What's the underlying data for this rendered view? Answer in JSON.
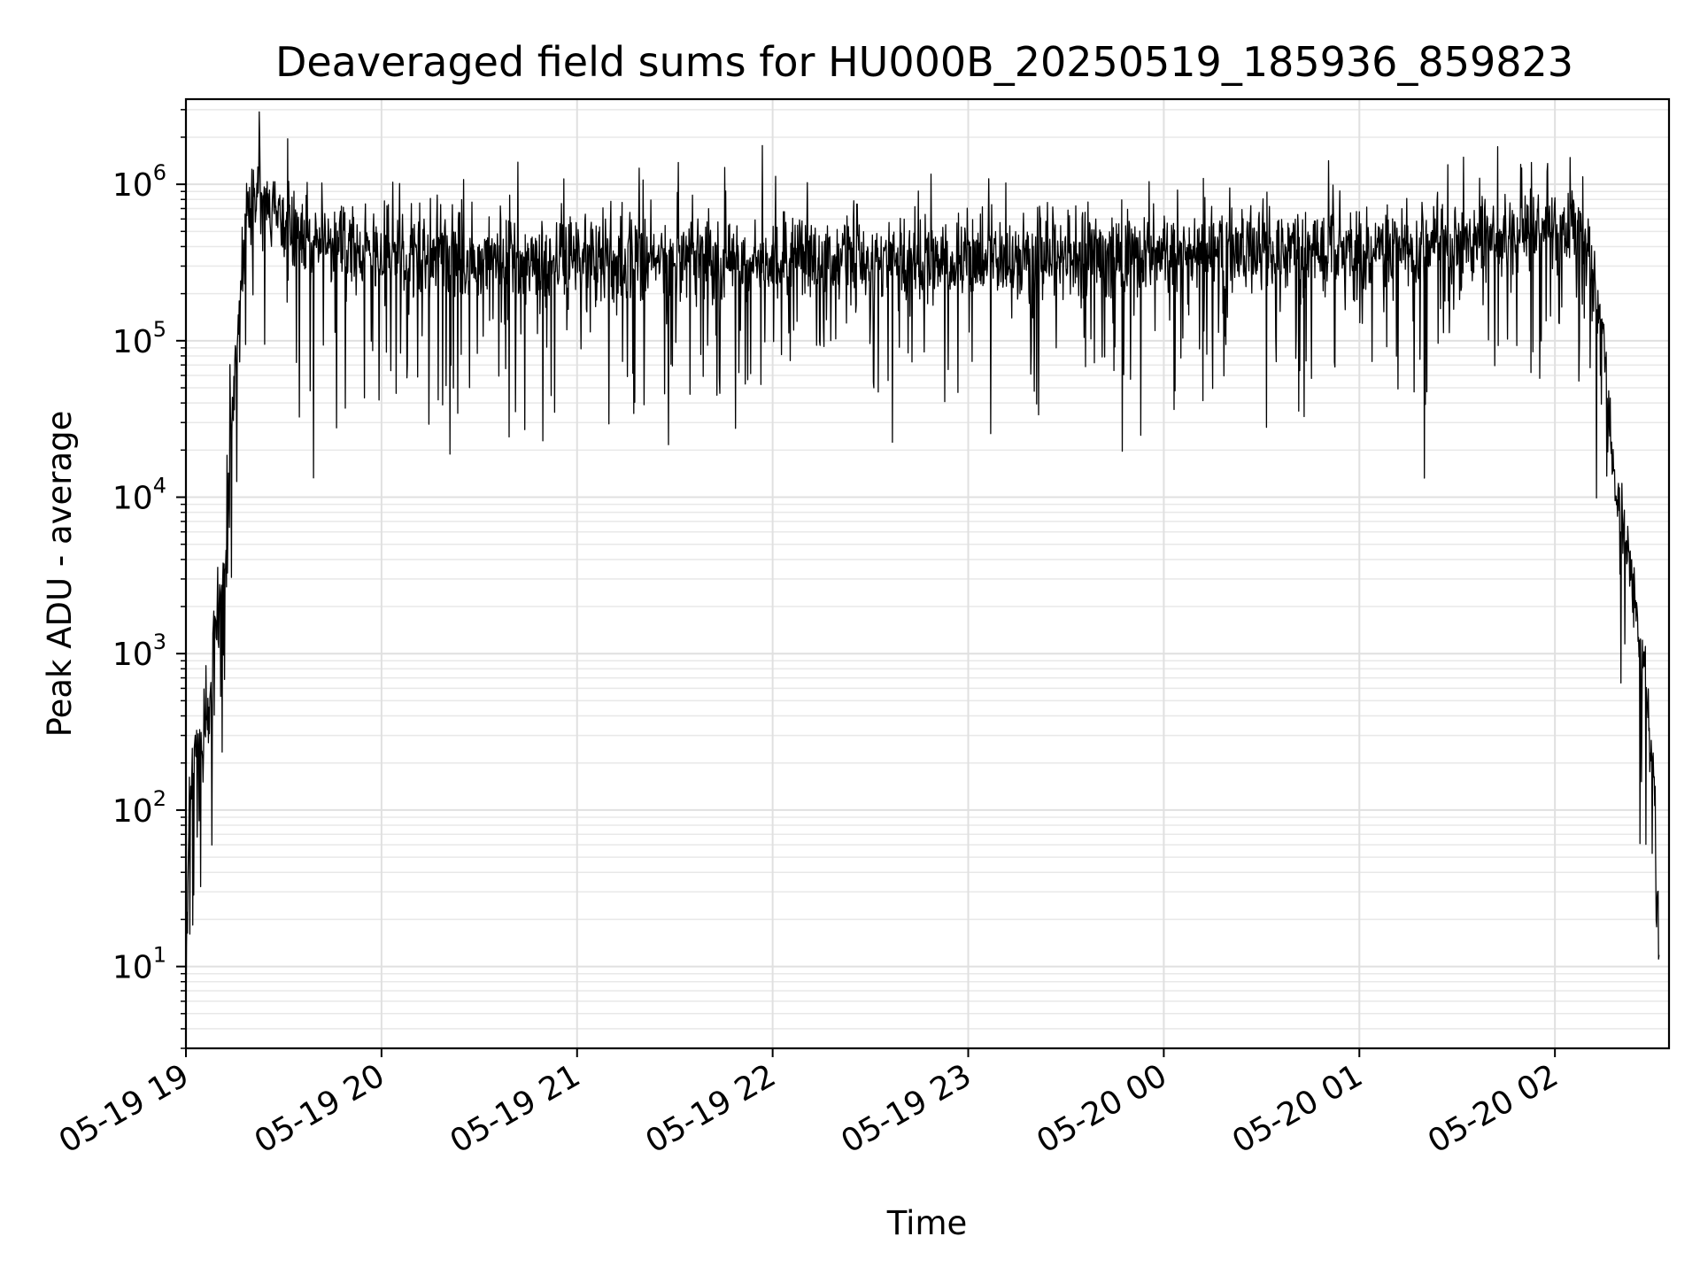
{
  "chart_data": {
    "type": "line",
    "title": "Deaveraged field sums for HU000B_20250519_185936_859823",
    "xlabel": "Time",
    "ylabel": "Peak ADU - average",
    "yscale": "log",
    "grid": true,
    "legend": "none",
    "line_color": "#000000",
    "x_range": [
      "2025-05-19 19:00",
      "2025-05-20 02:35"
    ],
    "y_range": [
      3,
      3500000
    ],
    "x_ticks": [
      {
        "t": "2025-05-19 19:00",
        "label": "05-19 19"
      },
      {
        "t": "2025-05-19 20:00",
        "label": "05-19 20"
      },
      {
        "t": "2025-05-19 21:00",
        "label": "05-19 21"
      },
      {
        "t": "2025-05-19 22:00",
        "label": "05-19 22"
      },
      {
        "t": "2025-05-19 23:00",
        "label": "05-19 23"
      },
      {
        "t": "2025-05-20 00:00",
        "label": "05-20 00"
      },
      {
        "t": "2025-05-20 01:00",
        "label": "05-20 01"
      },
      {
        "t": "2025-05-20 02:00",
        "label": "05-20 02"
      }
    ],
    "y_ticks": [
      {
        "value": 10,
        "base": "10",
        "exp": "1"
      },
      {
        "value": 100,
        "base": "10",
        "exp": "2"
      },
      {
        "value": 1000,
        "base": "10",
        "exp": "3"
      },
      {
        "value": 10000,
        "base": "10",
        "exp": "4"
      },
      {
        "value": 100000,
        "base": "10",
        "exp": "5"
      },
      {
        "value": 1000000,
        "base": "10",
        "exp": "6"
      }
    ],
    "series": [
      {
        "noise_sigma_log10": 0.14,
        "dip_probability": 0.09,
        "spike_probability": 0.035,
        "points": [
          {
            "t": "2025-05-19 19:00",
            "y": 5
          },
          {
            "t": "2025-05-19 19:01",
            "y": 120
          },
          {
            "t": "2025-05-19 19:03",
            "y": 250
          },
          {
            "t": "2025-05-19 19:05",
            "y": 200
          },
          {
            "t": "2025-05-19 19:07",
            "y": 400
          },
          {
            "t": "2025-05-19 19:08",
            "y": 700
          },
          {
            "t": "2025-05-19 19:09",
            "y": 1500
          },
          {
            "t": "2025-05-19 19:10",
            "y": 2000
          },
          {
            "t": "2025-05-19 19:12",
            "y": 4000
          },
          {
            "t": "2025-05-19 19:13",
            "y": 8000
          },
          {
            "t": "2025-05-19 19:14",
            "y": 30000
          },
          {
            "t": "2025-05-19 19:15",
            "y": 60000
          },
          {
            "t": "2025-05-19 19:16",
            "y": 150000
          },
          {
            "t": "2025-05-19 19:18",
            "y": 500000
          },
          {
            "t": "2025-05-19 19:20",
            "y": 750000
          },
          {
            "t": "2025-05-19 19:23",
            "y": 900000
          },
          {
            "t": "2025-05-19 19:26",
            "y": 800000
          },
          {
            "t": "2025-05-19 19:30",
            "y": 500000
          },
          {
            "t": "2025-05-19 19:40",
            "y": 420000
          },
          {
            "t": "2025-05-19 20:00",
            "y": 350000
          },
          {
            "t": "2025-05-19 21:00",
            "y": 330000
          },
          {
            "t": "2025-05-19 22:00",
            "y": 320000
          },
          {
            "t": "2025-05-19 23:00",
            "y": 330000
          },
          {
            "t": "2025-05-20 00:00",
            "y": 350000
          },
          {
            "t": "2025-05-20 01:00",
            "y": 380000
          },
          {
            "t": "2025-05-20 01:45",
            "y": 420000
          },
          {
            "t": "2025-05-20 02:00",
            "y": 550000
          },
          {
            "t": "2025-05-20 02:05",
            "y": 600000
          },
          {
            "t": "2025-05-20 02:10",
            "y": 400000
          },
          {
            "t": "2025-05-20 02:14",
            "y": 150000
          },
          {
            "t": "2025-05-20 02:17",
            "y": 30000
          },
          {
            "t": "2025-05-20 02:18",
            "y": 10000
          },
          {
            "t": "2025-05-20 02:21",
            "y": 7000
          },
          {
            "t": "2025-05-20 02:23",
            "y": 4000
          },
          {
            "t": "2025-05-20 02:25",
            "y": 2000
          },
          {
            "t": "2025-05-20 02:27",
            "y": 1000
          },
          {
            "t": "2025-05-20 02:29",
            "y": 300
          },
          {
            "t": "2025-05-20 02:31",
            "y": 100
          },
          {
            "t": "2025-05-20 02:32",
            "y": 10
          }
        ]
      }
    ]
  }
}
